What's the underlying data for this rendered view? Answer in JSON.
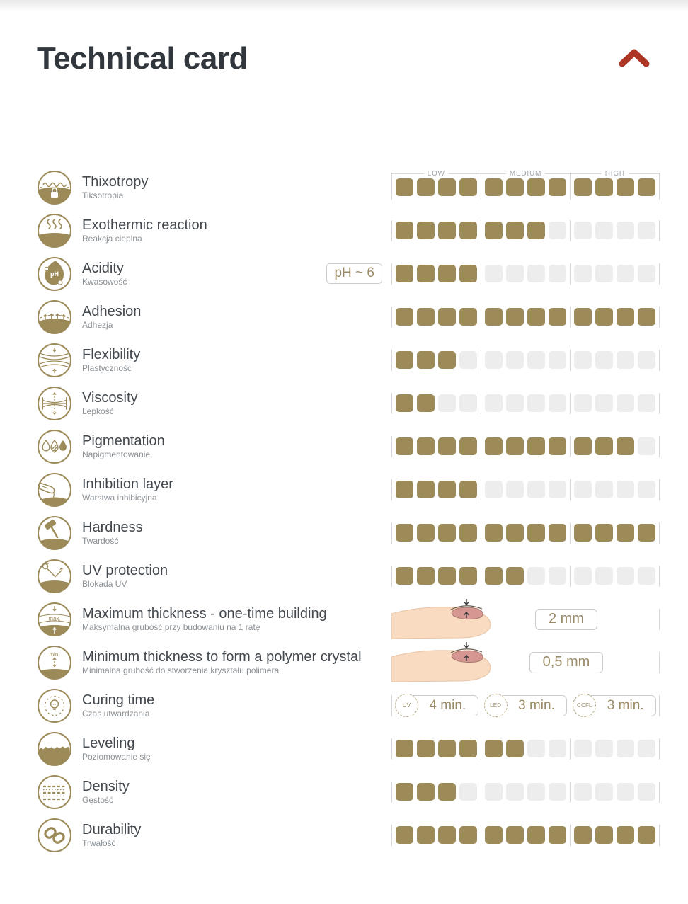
{
  "header": {
    "title": "Technical card",
    "collapse_icon": "chevron-up"
  },
  "scale_labels": [
    "LOW",
    "MEDIUM",
    "HIGH"
  ],
  "scale_max": 12,
  "colors": {
    "filled_square": "#9c8b59",
    "empty_square": "#ededed",
    "accent_text": "#9a8a66",
    "chevron_red": "#ac3523",
    "title_text": "#31373d"
  },
  "rows": [
    {
      "icon": "thixotropy-icon",
      "label": "Thixotropy",
      "sublabel": "Tiksotropia",
      "type": "bar",
      "value": 12
    },
    {
      "icon": "exothermic-icon",
      "label": "Exothermic reaction",
      "sublabel": "Reakcja cieplna",
      "type": "bar",
      "value": 7
    },
    {
      "icon": "acidity-icon",
      "label": "Acidity",
      "sublabel": "Kwasowość",
      "type": "bar",
      "value": 4,
      "badge": "pH ~ 6"
    },
    {
      "icon": "adhesion-icon",
      "label": "Adhesion",
      "sublabel": "Adhezja",
      "type": "bar",
      "value": 12
    },
    {
      "icon": "flexibility-icon",
      "label": "Flexibility",
      "sublabel": "Plastyczność",
      "type": "bar",
      "value": 3
    },
    {
      "icon": "viscosity-icon",
      "label": "Viscosity",
      "sublabel": "Lepkość",
      "type": "bar",
      "value": 2
    },
    {
      "icon": "pigmentation-icon",
      "label": "Pigmentation",
      "sublabel": "Napigmentowanie",
      "type": "bar",
      "value": 11
    },
    {
      "icon": "inhibition-icon",
      "label": "Inhibition layer",
      "sublabel": "Warstwa inhibicyjna",
      "type": "bar",
      "value": 4
    },
    {
      "icon": "hardness-icon",
      "label": "Hardness",
      "sublabel": "Twardość",
      "type": "bar",
      "value": 12
    },
    {
      "icon": "uv-protection-icon",
      "label": "UV protection",
      "sublabel": "Blokada UV",
      "type": "bar",
      "value": 6
    },
    {
      "icon": "max-thickness-icon",
      "label": "Maximum thickness - one-time building",
      "sublabel": "Maksymalna grubość przy budowaniu na 1 ratę",
      "type": "measure",
      "value_label": "2 mm"
    },
    {
      "icon": "min-thickness-icon",
      "label": "Minimum thickness to form a polymer crystal",
      "sublabel": "Minimalna grubość do stworzenia kryształu polimera",
      "type": "measure",
      "value_label": "0,5 mm"
    },
    {
      "icon": "curing-time-icon",
      "label": "Curing time",
      "sublabel": "Czas utwardzania",
      "type": "times",
      "times": [
        {
          "source": "UV",
          "time": "4 min."
        },
        {
          "source": "LED",
          "time": "3 min."
        },
        {
          "source": "CCFL",
          "time": "3 min."
        }
      ]
    },
    {
      "icon": "leveling-icon",
      "label": "Leveling",
      "sublabel": "Poziomowanie się",
      "type": "bar",
      "value": 6
    },
    {
      "icon": "density-icon",
      "label": "Density",
      "sublabel": "Gęstość",
      "type": "bar",
      "value": 3
    },
    {
      "icon": "durability-icon",
      "label": "Durability",
      "sublabel": "Trwałość",
      "type": "bar",
      "value": 12
    }
  ]
}
